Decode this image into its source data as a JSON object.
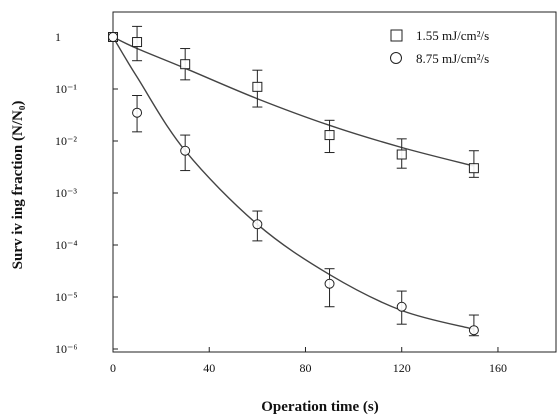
{
  "chart_data": {
    "type": "scatter",
    "title": "",
    "xlabel": "Operation time (s)",
    "ylabel": "Surv iv ing fraction (N/N₀)",
    "xlim": [
      0,
      175
    ],
    "ylim_log10": [
      -6,
      0.25
    ],
    "y_scale": "log",
    "x_ticks": [
      0,
      40,
      80,
      120,
      160
    ],
    "y_ticks": [
      {
        "exp": 0,
        "label": "1"
      },
      {
        "exp": -1,
        "label": "10⁻¹"
      },
      {
        "exp": -2,
        "label": "10⁻²"
      },
      {
        "exp": -3,
        "label": "10⁻³"
      },
      {
        "exp": -4,
        "label": "10⁻⁴"
      },
      {
        "exp": -5,
        "label": "10⁻⁵"
      },
      {
        "exp": -6,
        "label": "10⁻⁶"
      }
    ],
    "grid": false,
    "legend_position": "top-right",
    "series": [
      {
        "name": "1.55 mJ/cm²/s",
        "marker": "square",
        "x": [
          0,
          10,
          30,
          60,
          90,
          120,
          150
        ],
        "y": [
          1,
          0.8,
          0.3,
          0.11,
          0.013,
          0.0055,
          0.003
        ],
        "err_low": [
          1,
          0.35,
          0.15,
          0.045,
          0.006,
          0.003,
          0.002
        ],
        "err_high": [
          1,
          1.6,
          0.6,
          0.23,
          0.025,
          0.011,
          0.0065
        ],
        "fit_y": [
          1,
          0.6,
          0.25,
          0.065,
          0.02,
          0.0075,
          0.0033
        ]
      },
      {
        "name": "8.75 mJ/cm²/s",
        "marker": "circle",
        "x": [
          0,
          10,
          30,
          60,
          90,
          120,
          150
        ],
        "y": [
          1,
          0.035,
          0.0065,
          0.00025,
          1.8e-05,
          6.5e-06,
          2.3e-06
        ],
        "err_low": [
          1,
          0.015,
          0.0027,
          0.00012,
          6.5e-06,
          3e-06,
          1.8e-06
        ],
        "err_high": [
          1,
          0.075,
          0.013,
          0.00045,
          3.5e-05,
          1.3e-05,
          4.5e-06
        ],
        "fit_y": [
          1,
          0.17,
          0.0065,
          0.00025,
          2.7e-05,
          5.5e-06,
          2.4e-06
        ]
      }
    ]
  }
}
